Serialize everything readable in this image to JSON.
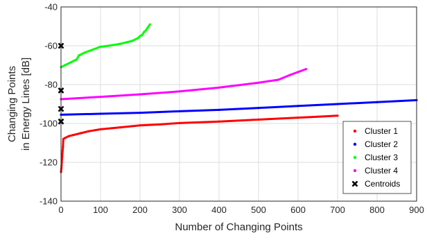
{
  "chart_data": {
    "type": "scatter",
    "title": "",
    "xlabel": "Number of Changing Points",
    "ylabel_lines": [
      "Changing Points",
      "in Energy Lines [dB]"
    ],
    "xlim": [
      0,
      900
    ],
    "ylim": [
      -140,
      -40
    ],
    "xticks": [
      0,
      100,
      200,
      300,
      400,
      500,
      600,
      700,
      800,
      900
    ],
    "yticks": [
      -140,
      -120,
      -100,
      -80,
      -60,
      -40
    ],
    "grid": true,
    "legend_position": "bottom-right",
    "series": [
      {
        "name": "Cluster 1",
        "color": "#ff0000",
        "points": [
          [
            0,
            -125
          ],
          [
            1,
            -123
          ],
          [
            2,
            -120
          ],
          [
            3,
            -117
          ],
          [
            4,
            -114
          ],
          [
            5,
            -112
          ],
          [
            6,
            -108
          ],
          [
            10,
            -107.5
          ],
          [
            20,
            -106.5
          ],
          [
            30,
            -106
          ],
          [
            50,
            -105
          ],
          [
            70,
            -104
          ],
          [
            100,
            -103
          ],
          [
            150,
            -102
          ],
          [
            200,
            -101
          ],
          [
            250,
            -100.5
          ],
          [
            300,
            -99.8
          ],
          [
            400,
            -99
          ],
          [
            500,
            -98
          ],
          [
            600,
            -97
          ],
          [
            650,
            -96.5
          ],
          [
            700,
            -96
          ]
        ]
      },
      {
        "name": "Cluster 2",
        "color": "#0000ff",
        "points": [
          [
            0,
            -95.5
          ],
          [
            100,
            -95
          ],
          [
            200,
            -94.5
          ],
          [
            300,
            -93.7
          ],
          [
            400,
            -93
          ],
          [
            500,
            -92
          ],
          [
            600,
            -91
          ],
          [
            700,
            -90
          ],
          [
            800,
            -89
          ],
          [
            900,
            -88
          ]
        ]
      },
      {
        "name": "Cluster 3",
        "color": "#00ff00",
        "points": [
          [
            0,
            -71
          ],
          [
            10,
            -70
          ],
          [
            20,
            -69
          ],
          [
            30,
            -68
          ],
          [
            40,
            -67
          ],
          [
            45,
            -65
          ],
          [
            50,
            -64.5
          ],
          [
            60,
            -63.5
          ],
          [
            80,
            -62
          ],
          [
            100,
            -60.5
          ],
          [
            120,
            -60
          ],
          [
            150,
            -59
          ],
          [
            180,
            -57.5
          ],
          [
            195,
            -56
          ],
          [
            200,
            -55
          ],
          [
            205,
            -54.5
          ],
          [
            210,
            -53
          ],
          [
            215,
            -52
          ],
          [
            220,
            -50.5
          ],
          [
            225,
            -49
          ]
        ]
      },
      {
        "name": "Cluster 4",
        "color": "#ff00ff",
        "points": [
          [
            0,
            -87.5
          ],
          [
            100,
            -86.3
          ],
          [
            200,
            -85
          ],
          [
            300,
            -83.5
          ],
          [
            400,
            -81.5
          ],
          [
            500,
            -79
          ],
          [
            550,
            -77.5
          ],
          [
            580,
            -75
          ],
          [
            600,
            -73.5
          ],
          [
            620,
            -72
          ]
        ]
      },
      {
        "name": "Centroids",
        "color": "#000000",
        "marker": "x",
        "points": [
          [
            0,
            -60
          ],
          [
            0,
            -83
          ],
          [
            0,
            -92.5
          ],
          [
            0,
            -99
          ]
        ]
      }
    ]
  }
}
